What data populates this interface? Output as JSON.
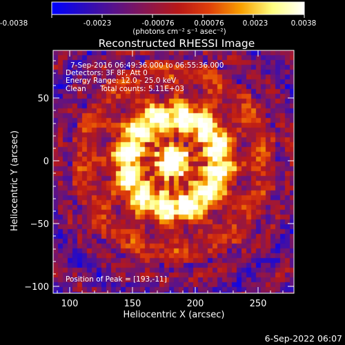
{
  "colorbar": {
    "tick_labels": [
      "-0.0038",
      "-0.0023",
      "-0.00076",
      "0.00076",
      "0.0023",
      "0.0038"
    ],
    "units_label": "(photons cm⁻² s⁻¹ asec⁻²)",
    "colors": [
      "#0000ff",
      "#2a0cc0",
      "#5a128a",
      "#8a1650",
      "#b81818",
      "#e0400a",
      "#f8a000",
      "#ffff80",
      "#ffffff"
    ]
  },
  "plot": {
    "title": "Reconstructed RHESSI Image",
    "xlabel": "Heliocentric X (arcsec)",
    "ylabel": "Heliocentric Y (arcsec)",
    "x_ticks": [
      "100",
      "150",
      "200",
      "250"
    ],
    "y_ticks": [
      "50",
      "0",
      "−50",
      "−100"
    ],
    "info": {
      "time_range": "7-Sep-2016 06:49:36.000 to 06:55:36.000",
      "detectors": "Detectors: 3F 8F, Att 0",
      "energy_range": "Energy Range: 12.0 - 25.0 keV",
      "algorithm": "Clean",
      "total_counts": "Total counts: 5.11E+03"
    },
    "peak_position": "Position of Peak = [193,-11]"
  },
  "footer": {
    "timestamp": "6-Sep-2022 06:07"
  }
}
